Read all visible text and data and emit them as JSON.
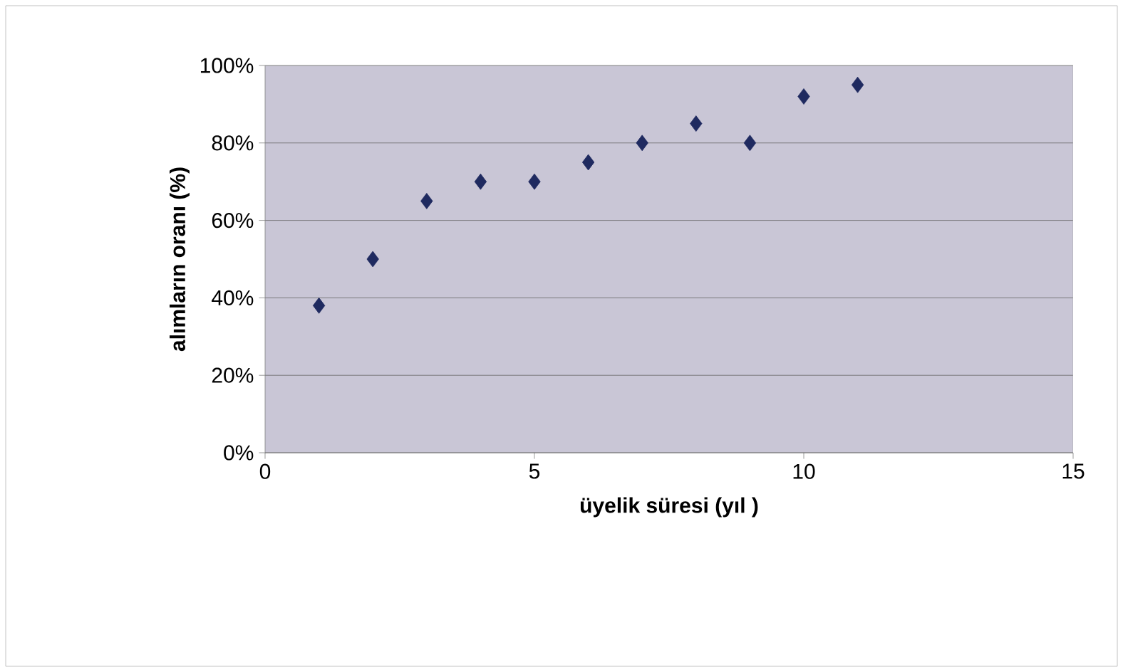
{
  "chart_data": {
    "type": "scatter",
    "xlabel": "üyelik süresi (yıl )",
    "ylabel": "alımların oranı (%)",
    "x": [
      1,
      2,
      3,
      4,
      5,
      6,
      7,
      8,
      9,
      10,
      11
    ],
    "series": [
      {
        "color": "#1f2a60",
        "values": [
          38,
          50,
          65,
          70,
          70,
          75,
          80,
          85,
          80,
          92,
          95
        ]
      }
    ],
    "xlim": [
      0,
      15
    ],
    "xticks": [
      0,
      5,
      10,
      15
    ],
    "ylim": [
      0,
      100
    ],
    "yticks": [
      {
        "value": 0,
        "label": "0%"
      },
      {
        "value": 20,
        "label": "20%"
      },
      {
        "value": 40,
        "label": "40%"
      },
      {
        "value": 60,
        "label": "60%"
      },
      {
        "value": 80,
        "label": "80%"
      },
      {
        "value": 100,
        "label": "100%"
      }
    ],
    "grid": "y",
    "marker": "diamond"
  }
}
